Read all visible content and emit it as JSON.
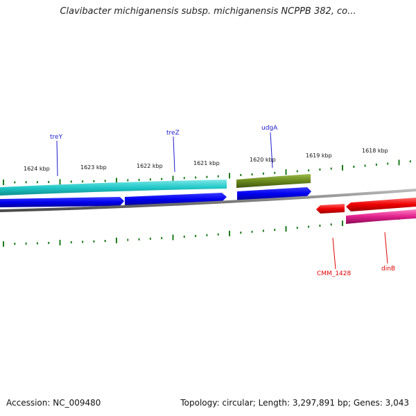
{
  "title": "Clavibacter michiganensis subsp. michiganensis NCPPB 382, co...",
  "footer": {
    "accession": "Accession: NC_009480",
    "summary": "Topology: circular; Length: 3,297,891 bp; Genes: 3,043"
  },
  "scale": {
    "labels": [
      "1624 kbp",
      "1623 kbp",
      "1622 kbp",
      "1621 kbp",
      "1620 kbp",
      "1619 kbp",
      "1618 kbp"
    ]
  },
  "genes": {
    "outer": [
      {
        "name": "treY",
        "label_color": "#1a1acc"
      },
      {
        "name": "treZ",
        "label_color": "#1a1acc"
      },
      {
        "name": "udgA",
        "label_color": "#1a1acc"
      }
    ],
    "inner": [
      {
        "name": "CMM_1428",
        "label_color": "#dd0000"
      },
      {
        "name": "dinB",
        "label_color": "#dd0000"
      }
    ]
  },
  "colors": {
    "cds_forward": "#0000ee",
    "cds_reverse": "#ee0000",
    "cyan_track": "#22c8c8",
    "olive_track": "#6b8a1e",
    "magenta_track": "#e0208c",
    "backbone": "#808080",
    "tick": "#1a7a1a"
  }
}
